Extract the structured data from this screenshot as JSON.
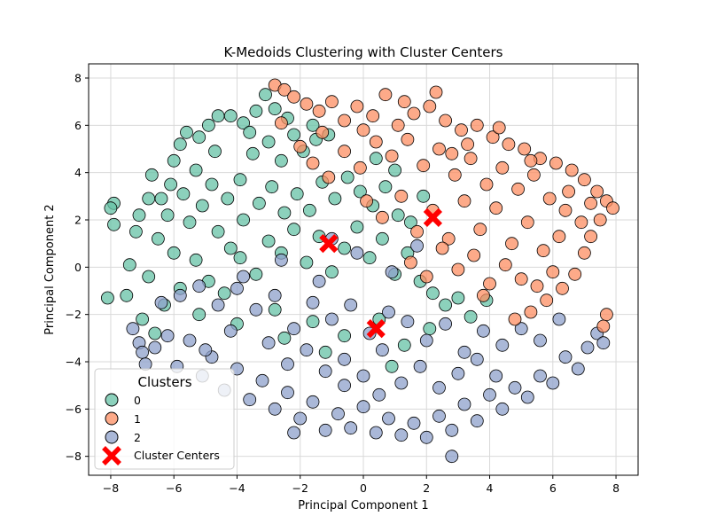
{
  "chart_data": {
    "type": "scatter",
    "title": "K-Medoids Clustering with Cluster Centers",
    "xlabel": "Principal Component 1",
    "ylabel": "Principal Component 2",
    "xlim": [
      -8.7,
      8.7
    ],
    "ylim": [
      -8.8,
      8.6
    ],
    "xticks": [
      -8,
      -6,
      -4,
      -2,
      0,
      2,
      4,
      6,
      8
    ],
    "yticks": [
      -8,
      -6,
      -4,
      -2,
      0,
      2,
      4,
      6,
      8
    ],
    "grid": true,
    "legend": {
      "title": "Clusters",
      "placement": "lower-left",
      "entries": [
        "0",
        "1",
        "2",
        "Cluster Centers"
      ]
    },
    "series": [
      {
        "name": "0",
        "color": "#66c2a5",
        "points": [
          [
            -7.9,
            2.7
          ],
          [
            -8.0,
            2.5
          ],
          [
            -7.9,
            1.8
          ],
          [
            -8.1,
            -1.3
          ],
          [
            -7.5,
            -1.2
          ],
          [
            -7.4,
            0.1
          ],
          [
            -7.2,
            1.5
          ],
          [
            -7.1,
            2.2
          ],
          [
            -6.8,
            2.9
          ],
          [
            -6.7,
            3.9
          ],
          [
            -6.4,
            2.9
          ],
          [
            -6.1,
            3.5
          ],
          [
            -6.0,
            4.5
          ],
          [
            -5.8,
            5.2
          ],
          [
            -5.6,
            5.7
          ],
          [
            -5.2,
            5.5
          ],
          [
            -4.9,
            6.0
          ],
          [
            -4.6,
            6.4
          ],
          [
            -4.2,
            6.4
          ],
          [
            -3.8,
            6.1
          ],
          [
            -3.4,
            6.6
          ],
          [
            -3.1,
            7.3
          ],
          [
            -2.8,
            6.7
          ],
          [
            -5.3,
            4.1
          ],
          [
            -4.8,
            3.5
          ],
          [
            -4.3,
            2.9
          ],
          [
            -3.9,
            3.7
          ],
          [
            -3.5,
            4.8
          ],
          [
            -3.0,
            5.3
          ],
          [
            -2.6,
            4.5
          ],
          [
            -2.2,
            5.6
          ],
          [
            -1.9,
            4.9
          ],
          [
            -1.5,
            5.4
          ],
          [
            -1.1,
            5.6
          ],
          [
            -6.5,
            1.2
          ],
          [
            -6.0,
            0.6
          ],
          [
            -5.5,
            1.9
          ],
          [
            -5.1,
            2.6
          ],
          [
            -4.6,
            1.5
          ],
          [
            -4.2,
            0.8
          ],
          [
            -3.8,
            2.0
          ],
          [
            -3.3,
            2.7
          ],
          [
            -2.9,
            3.4
          ],
          [
            -2.5,
            2.3
          ],
          [
            -2.1,
            3.1
          ],
          [
            -1.7,
            2.4
          ],
          [
            -1.3,
            3.6
          ],
          [
            -0.9,
            2.9
          ],
          [
            -0.5,
            3.8
          ],
          [
            -0.1,
            3.2
          ],
          [
            0.3,
            2.6
          ],
          [
            0.7,
            3.4
          ],
          [
            1.1,
            2.2
          ],
          [
            1.5,
            1.9
          ],
          [
            -6.8,
            -0.4
          ],
          [
            -6.3,
            -1.6
          ],
          [
            -5.8,
            -0.9
          ],
          [
            -5.3,
            0.3
          ],
          [
            -4.9,
            -0.6
          ],
          [
            -4.4,
            -1.1
          ],
          [
            -3.9,
            0.4
          ],
          [
            -3.4,
            -0.3
          ],
          [
            -3.0,
            1.1
          ],
          [
            -2.6,
            0.6
          ],
          [
            -2.2,
            1.6
          ],
          [
            -1.8,
            0.2
          ],
          [
            -1.4,
            1.3
          ],
          [
            -1.0,
            -0.2
          ],
          [
            -0.6,
            0.8
          ],
          [
            -0.2,
            1.7
          ],
          [
            0.2,
            0.4
          ],
          [
            0.6,
            1.2
          ],
          [
            1.0,
            -0.3
          ],
          [
            1.4,
            0.6
          ],
          [
            1.8,
            -0.6
          ],
          [
            2.2,
            -1.1
          ],
          [
            2.6,
            -1.6
          ],
          [
            3.0,
            -1.3
          ],
          [
            3.4,
            -2.1
          ],
          [
            3.9,
            -1.4
          ],
          [
            -7.0,
            -2.2
          ],
          [
            -6.6,
            -2.8
          ],
          [
            -5.2,
            -2.0
          ],
          [
            -4.0,
            -2.4
          ],
          [
            -2.8,
            -1.8
          ],
          [
            -1.6,
            -2.3
          ],
          [
            -0.6,
            -2.9
          ],
          [
            0.5,
            -2.2
          ],
          [
            1.3,
            -3.3
          ],
          [
            2.1,
            -2.6
          ],
          [
            -1.2,
            -3.6
          ],
          [
            -2.5,
            -3.0
          ],
          [
            0.9,
            -4.2
          ],
          [
            -4.7,
            4.9
          ],
          [
            -5.7,
            3.1
          ],
          [
            -6.2,
            2.2
          ],
          [
            -3.6,
            5.7
          ],
          [
            -2.4,
            6.3
          ],
          [
            -1.6,
            6.0
          ],
          [
            0.4,
            4.6
          ],
          [
            1.0,
            4.1
          ],
          [
            1.9,
            3.0
          ]
        ]
      },
      {
        "name": "1",
        "color": "#fc8d62",
        "points": [
          [
            -2.8,
            7.7
          ],
          [
            -2.5,
            7.5
          ],
          [
            -2.2,
            7.2
          ],
          [
            -1.8,
            6.9
          ],
          [
            -1.4,
            6.6
          ],
          [
            -1.0,
            7.0
          ],
          [
            -0.6,
            6.2
          ],
          [
            -0.2,
            6.8
          ],
          [
            0.3,
            6.4
          ],
          [
            0.7,
            7.3
          ],
          [
            1.1,
            6.0
          ],
          [
            1.6,
            6.5
          ],
          [
            2.1,
            6.8
          ],
          [
            2.6,
            6.2
          ],
          [
            3.1,
            5.8
          ],
          [
            3.6,
            6.0
          ],
          [
            4.1,
            5.5
          ],
          [
            4.6,
            5.2
          ],
          [
            5.1,
            5.0
          ],
          [
            5.6,
            4.6
          ],
          [
            6.1,
            4.4
          ],
          [
            6.6,
            4.1
          ],
          [
            7.0,
            3.7
          ],
          [
            7.4,
            3.2
          ],
          [
            7.7,
            2.8
          ],
          [
            7.9,
            2.5
          ],
          [
            7.5,
            2.0
          ],
          [
            7.2,
            1.3
          ],
          [
            7.0,
            0.6
          ],
          [
            6.7,
            -0.3
          ],
          [
            6.3,
            -0.9
          ],
          [
            5.8,
            -1.4
          ],
          [
            5.3,
            -1.9
          ],
          [
            4.8,
            -2.2
          ],
          [
            7.7,
            -2.0
          ],
          [
            7.6,
            -2.5
          ],
          [
            -1.6,
            4.4
          ],
          [
            -1.1,
            3.8
          ],
          [
            -0.6,
            4.9
          ],
          [
            -0.1,
            4.2
          ],
          [
            0.4,
            5.3
          ],
          [
            0.9,
            4.7
          ],
          [
            1.4,
            5.4
          ],
          [
            1.9,
            4.3
          ],
          [
            2.4,
            5.0
          ],
          [
            2.9,
            3.9
          ],
          [
            3.4,
            4.6
          ],
          [
            3.9,
            3.5
          ],
          [
            4.4,
            4.2
          ],
          [
            4.9,
            3.3
          ],
          [
            5.4,
            3.9
          ],
          [
            5.9,
            2.9
          ],
          [
            6.4,
            2.4
          ],
          [
            6.9,
            1.9
          ],
          [
            0.1,
            2.8
          ],
          [
            0.6,
            2.1
          ],
          [
            1.2,
            3.0
          ],
          [
            1.7,
            1.5
          ],
          [
            2.2,
            2.4
          ],
          [
            2.7,
            1.2
          ],
          [
            3.2,
            2.8
          ],
          [
            3.7,
            1.6
          ],
          [
            4.2,
            2.5
          ],
          [
            4.7,
            1.0
          ],
          [
            5.2,
            1.9
          ],
          [
            5.7,
            0.7
          ],
          [
            6.2,
            1.3
          ],
          [
            1.5,
            0.2
          ],
          [
            2.0,
            -0.4
          ],
          [
            2.5,
            0.8
          ],
          [
            3.0,
            -0.1
          ],
          [
            3.5,
            0.5
          ],
          [
            4.0,
            -0.7
          ],
          [
            4.5,
            0.1
          ],
          [
            5.0,
            -0.5
          ],
          [
            5.5,
            -0.8
          ],
          [
            6.0,
            -0.2
          ],
          [
            3.8,
            -1.2
          ],
          [
            -1.3,
            5.7
          ],
          [
            -2.0,
            5.1
          ],
          [
            -2.6,
            6.1
          ],
          [
            0.0,
            5.8
          ],
          [
            1.3,
            7.0
          ],
          [
            2.3,
            7.4
          ],
          [
            4.3,
            5.9
          ],
          [
            5.3,
            4.5
          ],
          [
            6.5,
            3.2
          ],
          [
            7.2,
            2.7
          ],
          [
            2.8,
            4.8
          ],
          [
            3.3,
            5.2
          ]
        ]
      },
      {
        "name": "2",
        "color": "#8da0cb",
        "points": [
          [
            -7.3,
            -2.6
          ],
          [
            -7.1,
            -3.2
          ],
          [
            -7.0,
            -3.6
          ],
          [
            -6.9,
            -4.1
          ],
          [
            -6.6,
            -3.4
          ],
          [
            -6.2,
            -2.9
          ],
          [
            -5.9,
            -4.2
          ],
          [
            -5.5,
            -3.1
          ],
          [
            -5.1,
            -4.6
          ],
          [
            -4.8,
            -3.8
          ],
          [
            -4.4,
            -5.2
          ],
          [
            -4.0,
            -4.3
          ],
          [
            -3.6,
            -5.6
          ],
          [
            -3.2,
            -4.8
          ],
          [
            -2.8,
            -6.0
          ],
          [
            -2.4,
            -5.3
          ],
          [
            -2.0,
            -6.4
          ],
          [
            -1.6,
            -5.7
          ],
          [
            -1.2,
            -6.9
          ],
          [
            -0.8,
            -6.2
          ],
          [
            -0.4,
            -6.8
          ],
          [
            0.0,
            -5.9
          ],
          [
            0.4,
            -7.0
          ],
          [
            0.8,
            -6.4
          ],
          [
            1.2,
            -7.1
          ],
          [
            1.6,
            -6.6
          ],
          [
            2.0,
            -7.2
          ],
          [
            2.4,
            -6.3
          ],
          [
            2.8,
            -6.9
          ],
          [
            3.2,
            -5.8
          ],
          [
            3.6,
            -6.5
          ],
          [
            4.0,
            -5.4
          ],
          [
            4.4,
            -6.0
          ],
          [
            4.8,
            -5.1
          ],
          [
            5.2,
            -5.5
          ],
          [
            5.6,
            -4.6
          ],
          [
            6.0,
            -4.9
          ],
          [
            6.4,
            -3.8
          ],
          [
            6.8,
            -4.3
          ],
          [
            7.1,
            -3.4
          ],
          [
            7.4,
            -2.8
          ],
          [
            7.6,
            -3.2
          ],
          [
            -6.4,
            -1.5
          ],
          [
            -5.8,
            -1.2
          ],
          [
            -5.2,
            -0.8
          ],
          [
            -4.6,
            -1.6
          ],
          [
            -4.0,
            -0.9
          ],
          [
            -3.4,
            -1.8
          ],
          [
            -2.8,
            -1.2
          ],
          [
            -2.2,
            -2.6
          ],
          [
            -1.6,
            -1.5
          ],
          [
            -1.0,
            -2.2
          ],
          [
            -0.4,
            -1.6
          ],
          [
            0.2,
            -2.8
          ],
          [
            0.8,
            -1.9
          ],
          [
            1.4,
            -2.3
          ],
          [
            2.0,
            -3.1
          ],
          [
            2.6,
            -2.4
          ],
          [
            3.2,
            -3.6
          ],
          [
            3.8,
            -2.7
          ],
          [
            4.4,
            -3.3
          ],
          [
            5.0,
            -2.6
          ],
          [
            5.6,
            -3.1
          ],
          [
            6.2,
            -2.2
          ],
          [
            -3.0,
            -3.2
          ],
          [
            -2.4,
            -4.1
          ],
          [
            -1.8,
            -3.5
          ],
          [
            -1.2,
            -4.4
          ],
          [
            -0.6,
            -3.9
          ],
          [
            0.0,
            -4.6
          ],
          [
            0.6,
            -3.5
          ],
          [
            1.2,
            -4.9
          ],
          [
            1.8,
            -4.2
          ],
          [
            2.4,
            -5.1
          ],
          [
            3.0,
            -4.5
          ],
          [
            3.6,
            -3.9
          ],
          [
            4.2,
            -4.6
          ],
          [
            -4.2,
            -2.7
          ],
          [
            -5.0,
            -3.5
          ],
          [
            -3.8,
            -0.4
          ],
          [
            -2.6,
            0.3
          ],
          [
            -1.4,
            -0.6
          ],
          [
            -0.2,
            0.6
          ],
          [
            0.9,
            -0.2
          ],
          [
            1.7,
            0.9
          ],
          [
            -1.0,
            1.2
          ],
          [
            2.8,
            -8.0
          ],
          [
            -0.6,
            -5.0
          ],
          [
            -2.2,
            -7.0
          ],
          [
            0.5,
            -5.4
          ]
        ]
      }
    ],
    "centers": {
      "name": "Cluster Centers",
      "color": "#ff0000",
      "points": [
        [
          -1.1,
          1.0
        ],
        [
          2.2,
          2.1
        ],
        [
          0.4,
          -2.6
        ]
      ]
    }
  }
}
